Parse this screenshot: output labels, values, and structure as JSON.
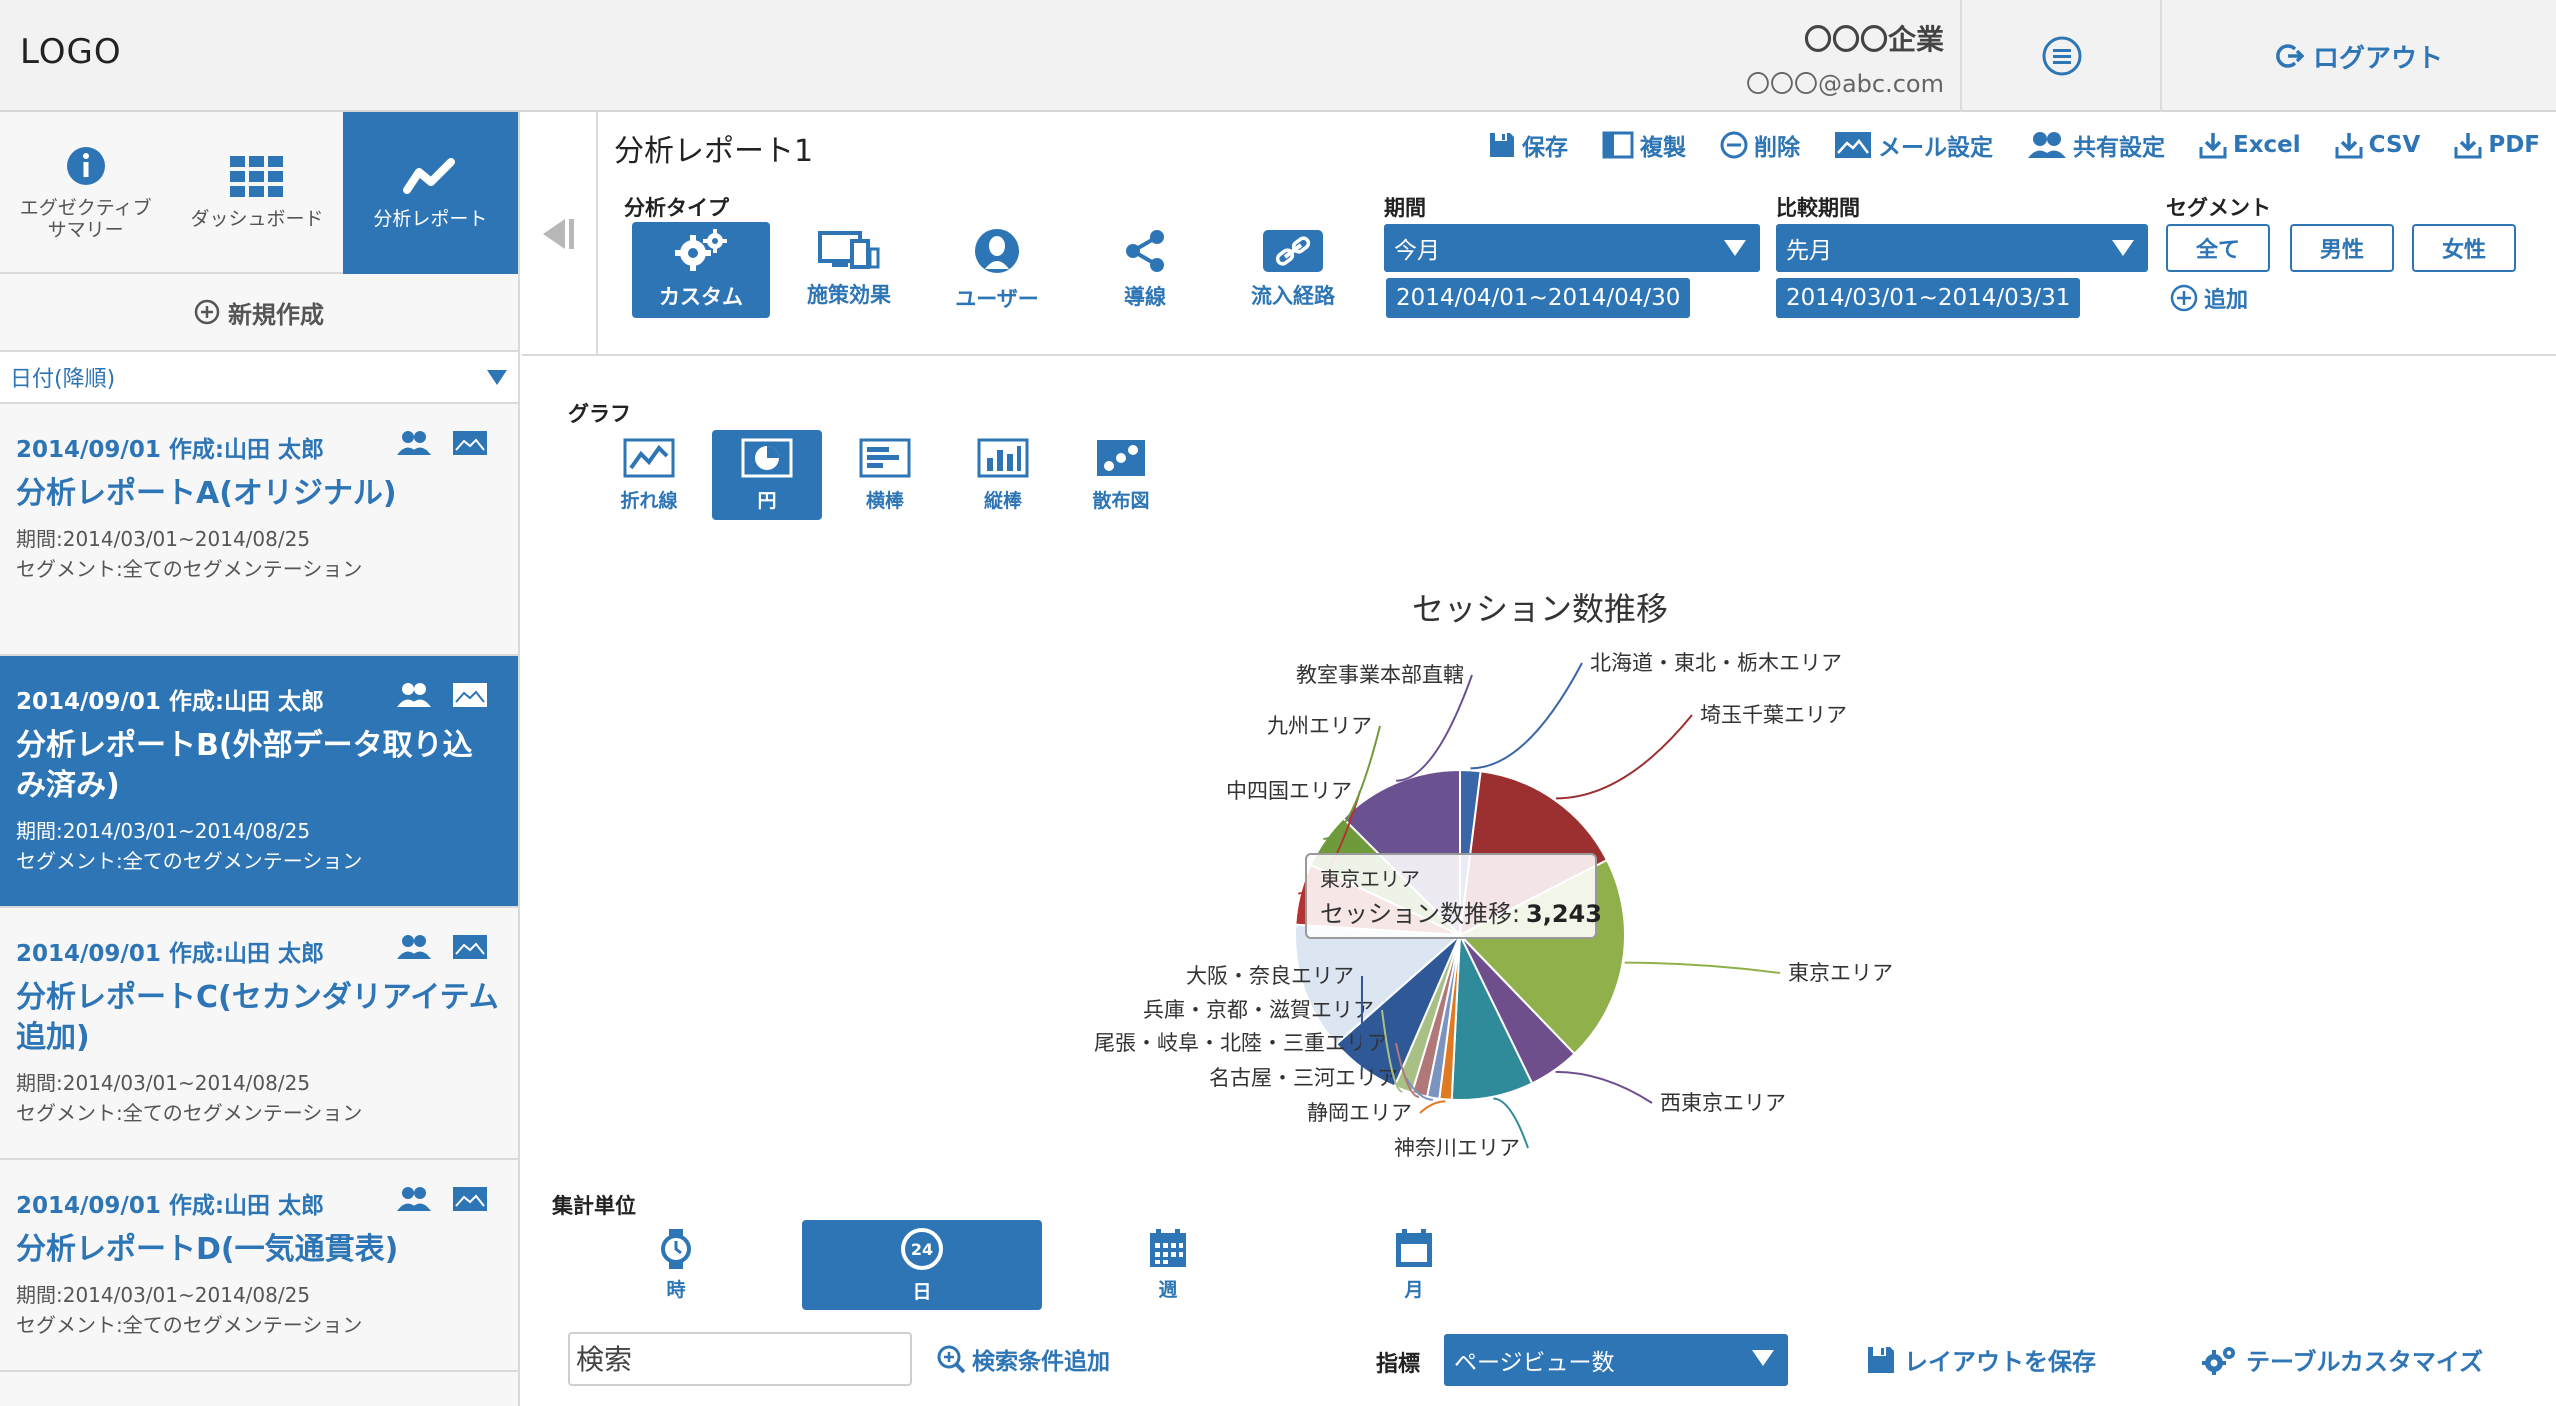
{
  "header": {
    "logo": "LOGO",
    "company": "〇〇〇企業",
    "email": "〇〇〇@abc.com",
    "logout": "ログアウト"
  },
  "sidebar": {
    "tabs": [
      {
        "label": "エグゼクティブ\nサマリー",
        "icon": "info-icon"
      },
      {
        "label": "ダッシュボード",
        "icon": "grid-icon"
      },
      {
        "label": "分析レポート",
        "icon": "trend-icon"
      }
    ],
    "new_create": "新規作成",
    "sort_label": "日付(降順)",
    "reports": [
      {
        "meta": "2014/09/01 作成:山田 太郎",
        "title": "分析レポートA(オリジナル)",
        "period": "期間:2014/03/01~2014/08/25",
        "segment": "セグメント:全てのセグメンテーション"
      },
      {
        "meta": "2014/09/01 作成:山田 太郎",
        "title": "分析レポートB(外部データ取り込み済み)",
        "period": "期間:2014/03/01~2014/08/25",
        "segment": "セグメント:全てのセグメンテーション"
      },
      {
        "meta": "2014/09/01 作成:山田 太郎",
        "title": "分析レポートC(セカンダリアイテム追加)",
        "period": "期間:2014/03/01~2014/08/25",
        "segment": "セグメント:全てのセグメンテーション"
      },
      {
        "meta": "2014/09/01 作成:山田 太郎",
        "title": "分析レポートD(一気通貫表)",
        "period": "期間:2014/03/01~2014/08/25",
        "segment": "セグメント:全てのセグメンテーション"
      }
    ]
  },
  "report": {
    "title": "分析レポート1",
    "toolbar": {
      "save": "保存",
      "copy": "複製",
      "delete": "削除",
      "mail": "メール設定",
      "share": "共有設定",
      "excel": "Excel",
      "csv": "CSV",
      "pdf": "PDF"
    },
    "analysis_type_label": "分析タイプ",
    "analysis_types": [
      "カスタム",
      "施策効果",
      "ユーザー",
      "導線",
      "流入経路"
    ],
    "period_label": "期間",
    "period_value": "今月",
    "period_range": "2014/04/01~2014/04/30",
    "compare_label": "比較期間",
    "compare_value": "先月",
    "compare_range": "2014/03/01~2014/03/31",
    "segment_label": "セグメント",
    "segments": [
      "全て",
      "男性",
      "女性"
    ],
    "segment_add": "追加"
  },
  "graph": {
    "label": "グラフ",
    "types": [
      "折れ線",
      "円",
      "横棒",
      "縦棒",
      "散布図"
    ],
    "active": "円"
  },
  "chart_data": {
    "type": "pie",
    "title": "セッション数推移",
    "slices": [
      {
        "name": "北海道・東北・栃木エリア",
        "value": 2.0,
        "color": "#3a66a8"
      },
      {
        "name": "埼玉千葉エリア",
        "value": 15.5,
        "color": "#9c2f2f"
      },
      {
        "name": "東京エリア",
        "value": 20.3,
        "color": "#8fb04b"
      },
      {
        "name": "西東京エリア",
        "value": 5.0,
        "color": "#6e4f8c"
      },
      {
        "name": "神奈川エリア",
        "value": 8.0,
        "color": "#2f8a9a"
      },
      {
        "name": "静岡エリア",
        "value": 1.2,
        "color": "#e07a22"
      },
      {
        "name": "名古屋・三河エリア",
        "value": 1.2,
        "color": "#7a93bf"
      },
      {
        "name": "尾張・岐阜・北陸・三重エリア",
        "value": 1.5,
        "color": "#b07878"
      },
      {
        "name": "兵庫・京都・滋賀エリア",
        "value": 1.8,
        "color": "#a8bf86"
      },
      {
        "name": "大阪・奈良エリア",
        "value": 7.0,
        "color": "#2f5896"
      },
      {
        "name": "東京エリア",
        "value": 12.5,
        "color": "#dce6f2"
      },
      {
        "name": "中四国エリア",
        "value": 6.0,
        "color": "#b33333"
      },
      {
        "name": "九州エリア",
        "value": 5.5,
        "color": "#6f9a3b"
      },
      {
        "name": "教室事業本部直轄",
        "value": 12.5,
        "color": "#6a5290"
      }
    ],
    "tooltip": {
      "area": "東京エリア",
      "label": "セッション数推移:",
      "value": "3,243"
    }
  },
  "aggregation": {
    "label": "集計単位",
    "units": [
      "時",
      "日",
      "週",
      "月"
    ],
    "active": "日"
  },
  "bottom": {
    "search_placeholder": "検索",
    "add_search": "検索条件追加",
    "metric_label": "指標",
    "metric_value": "ページビュー数",
    "save_layout": "レイアウトを保存",
    "table_customize": "テーブルカスタマイズ"
  },
  "colors": {
    "accent": "#2e75b6"
  }
}
